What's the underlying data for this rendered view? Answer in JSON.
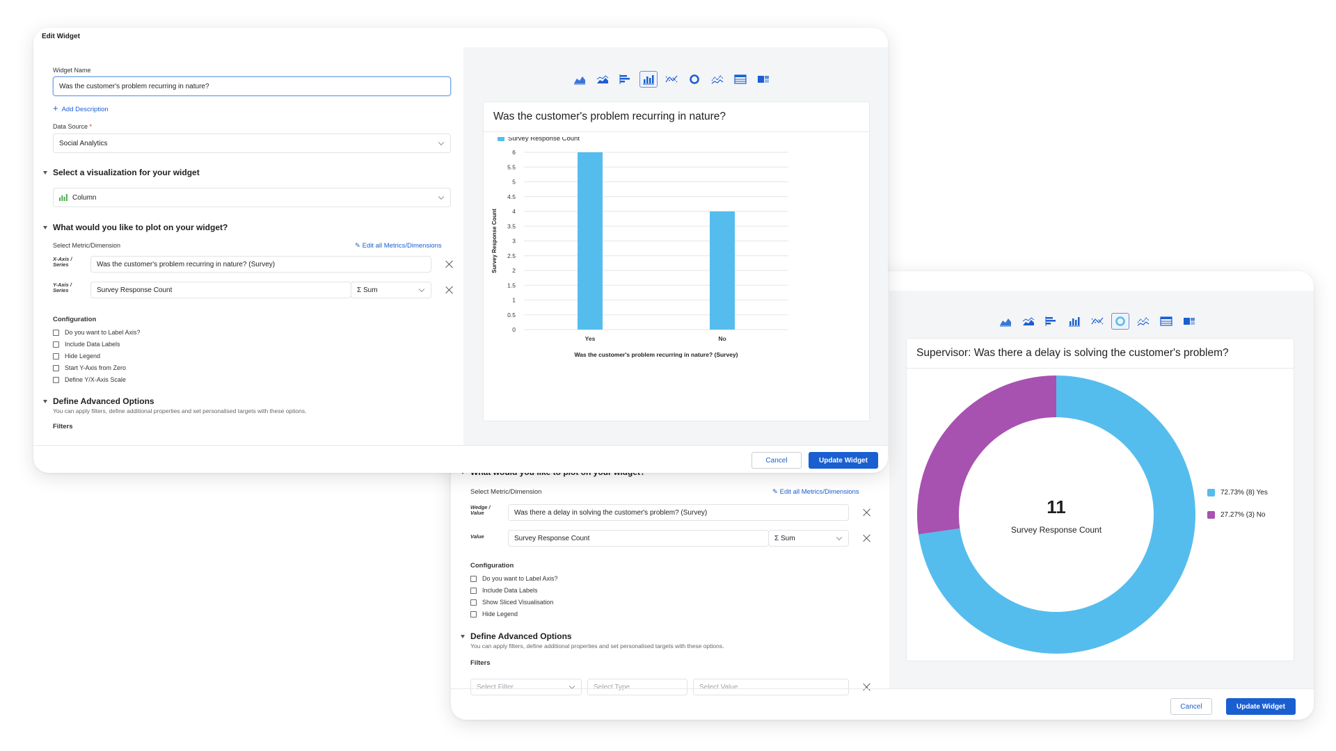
{
  "colors": {
    "accent": "#1a5fd0",
    "bar": "#55bded",
    "donut_yes": "#55bded",
    "donut_no": "#a752b0",
    "viz_icon": "#1a5fd0"
  },
  "viz_icons": [
    "area-chart-icon",
    "stacked-area-icon",
    "horizontal-bar-icon",
    "column-chart-icon",
    "scatter-icon",
    "donut-icon",
    "line-chart-icon",
    "table-icon",
    "pivot-icon"
  ],
  "widget1": {
    "header": "Edit Widget",
    "widget_name_label": "Widget Name",
    "widget_name_value": "Was the customer's problem recurring in nature?",
    "add_description": "Add Description",
    "data_source_label": "Data Source",
    "required_mark": "*",
    "data_source_value": "Social Analytics",
    "viz_section": "Select a visualization for your widget",
    "viz_value": "Column",
    "plot_section": "What would you like to plot on your widget?",
    "select_metric_label": "Select Metric/Dimension",
    "edit_all": "Edit all Metrics/Dimensions",
    "x_axis_tag": "X-Axis / Series",
    "x_axis_value": "Was the customer's problem recurring in nature? (Survey)",
    "y_axis_tag": "Y-Axis / Series",
    "y_axis_value": "Survey Response Count",
    "agg_value": "Σ Sum",
    "config_label": "Configuration",
    "config_options": [
      "Do you want to Label Axis?",
      "Include Data Labels",
      "Hide Legend",
      "Start Y-Axis from Zero",
      "Define Y/X-Axis Scale"
    ],
    "advanced_section": "Define Advanced Options",
    "advanced_desc": "You can apply filters, define additional properties and set personalised targets with these options.",
    "filters_label": "Filters",
    "cancel": "Cancel",
    "update": "Update Widget"
  },
  "chart1": {
    "title": "Was the customer's problem recurring in nature?",
    "chart_data": {
      "type": "bar",
      "categories": [
        "Yes",
        "No"
      ],
      "series": [
        {
          "name": "Survey Response Count",
          "values": [
            6,
            4
          ]
        }
      ],
      "xlabel": "Was the customer's problem recurring in nature? (Survey)",
      "ylabel": "Survey Response Count",
      "ylim": [
        0,
        6
      ],
      "yticks": [
        "0",
        "0.5",
        "1",
        "1.5",
        "2",
        "2.5",
        "3",
        "3.5",
        "4",
        "4.5",
        "5",
        "5.5",
        "6"
      ],
      "grid": true,
      "legend": "top-left"
    }
  },
  "widget2": {
    "plot_section_partial": "What would you like to plot on your widget?",
    "select_metric_label": "Select Metric/Dimension",
    "edit_all": "Edit all Metrics/Dimensions",
    "wedge_tag": "Wedge / Value",
    "wedge_value": "Was there a delay in solving the customer's problem? (Survey)",
    "value_tag": "Value",
    "value_value": "Survey Response Count",
    "agg_value": "Σ Sum",
    "config_label": "Configuration",
    "config_options": [
      "Do you want to Label Axis?",
      "Include Data Labels",
      "Show Sliced Visualisation",
      "Hide Legend"
    ],
    "advanced_section": "Define Advanced Options",
    "advanced_desc": "You can apply filters, define additional properties and set personalised targets with these options.",
    "filters_label": "Filters",
    "filter_placeholders": [
      "Select Filter",
      "Select Type",
      "Select Value"
    ],
    "cancel": "Cancel",
    "update": "Update Widget"
  },
  "chart2": {
    "title": "Supervisor: Was there a delay is solving the customer's problem?",
    "center_value": "11",
    "center_label": "Survey Response Count",
    "chart_data": {
      "type": "pie",
      "categories": [
        "Yes",
        "No"
      ],
      "values": [
        8,
        3
      ],
      "percent": [
        72.73,
        27.27
      ],
      "legend_labels": [
        "72.73% (8) Yes",
        "27.27% (3) No"
      ],
      "legend": "right"
    }
  }
}
